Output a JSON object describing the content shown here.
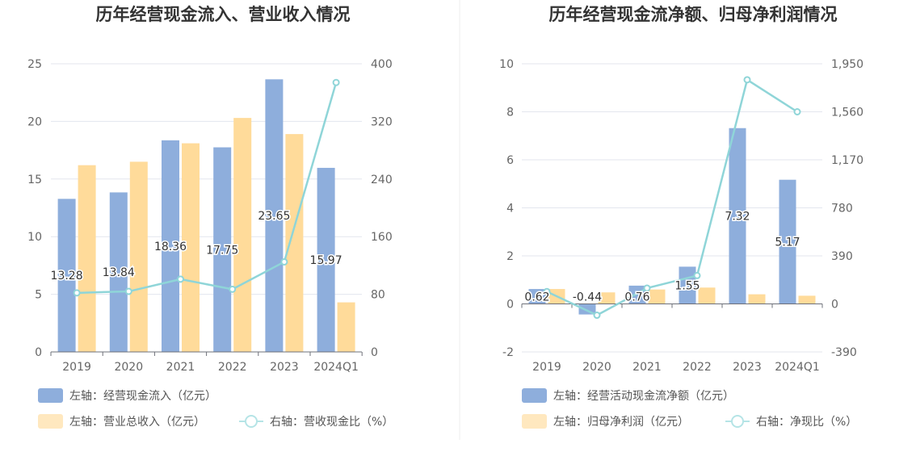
{
  "chart_data": [
    {
      "type": "bar",
      "title": "历年经营现金流入、营业收入情况",
      "categories": [
        "2019",
        "2020",
        "2021",
        "2022",
        "2023",
        "2024Q1"
      ],
      "y_left": {
        "min": 0,
        "max": 25,
        "ticks": [
          "0",
          "5",
          "10",
          "15",
          "20",
          "25"
        ]
      },
      "y_right": {
        "min": 0,
        "max": 400,
        "ticks": [
          "0",
          "80",
          "160",
          "240",
          "320",
          "400"
        ]
      },
      "series": [
        {
          "name": "左轴：经营现金流入（亿元）",
          "type": "bar",
          "axis": "left",
          "color": "#8eaedc",
          "values": [
            13.28,
            13.84,
            18.36,
            17.75,
            23.65,
            15.97
          ],
          "labels": [
            "13.28",
            "13.84",
            "18.36",
            "17.75",
            "23.65",
            "15.97"
          ]
        },
        {
          "name": "左轴：营业总收入（亿元）",
          "type": "bar",
          "axis": "left",
          "color": "#ffdb9a",
          "values": [
            16.2,
            16.5,
            18.1,
            20.3,
            18.9,
            4.3
          ]
        },
        {
          "name": "右轴：营收现金比（%）",
          "type": "line",
          "axis": "right",
          "color": "#8fd5d8",
          "values": [
            82,
            84,
            101,
            87,
            125,
            374
          ]
        }
      ]
    },
    {
      "type": "bar",
      "title": "历年经营现金流净额、归母净利润情况",
      "categories": [
        "2019",
        "2020",
        "2021",
        "2022",
        "2023",
        "2024Q1"
      ],
      "y_left": {
        "min": -2,
        "max": 10,
        "ticks": [
          "-2",
          "0",
          "2",
          "4",
          "6",
          "8",
          "10"
        ]
      },
      "y_right": {
        "min": -390,
        "max": 1950,
        "ticks": [
          "-390",
          "0",
          "390",
          "780",
          "1,170",
          "1,560",
          "1,950"
        ]
      },
      "series": [
        {
          "name": "左轴：经营活动现金流净额（亿元）",
          "type": "bar",
          "axis": "left",
          "color": "#8eaedc",
          "values": [
            0.62,
            -0.44,
            0.76,
            1.55,
            7.32,
            5.17
          ],
          "labels": [
            "0.62",
            "-0.44",
            "0.76",
            "1.55",
            "7.32",
            "5.17"
          ]
        },
        {
          "name": "左轴：归母净利润（亿元）",
          "type": "bar",
          "axis": "left",
          "color": "#ffdb9a",
          "values": [
            0.62,
            0.48,
            0.6,
            0.68,
            0.4,
            0.34
          ]
        },
        {
          "name": "右轴：净现比（%）",
          "type": "line",
          "axis": "right",
          "color": "#8fd5d8",
          "values": [
            100,
            -92,
            128,
            230,
            1820,
            1560
          ]
        }
      ]
    }
  ]
}
